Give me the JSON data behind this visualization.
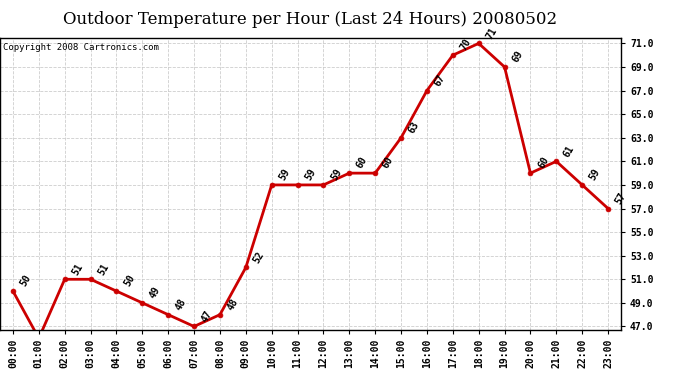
{
  "title": "Outdoor Temperature per Hour (Last 24 Hours) 20080502",
  "copyright": "Copyright 2008 Cartronics.com",
  "hours": [
    "00:00",
    "01:00",
    "02:00",
    "03:00",
    "04:00",
    "05:00",
    "06:00",
    "07:00",
    "08:00",
    "09:00",
    "10:00",
    "11:00",
    "12:00",
    "13:00",
    "14:00",
    "15:00",
    "16:00",
    "17:00",
    "18:00",
    "19:00",
    "20:00",
    "21:00",
    "22:00",
    "23:00"
  ],
  "temps": [
    50,
    46,
    51,
    51,
    50,
    49,
    48,
    47,
    48,
    52,
    59,
    59,
    59,
    60,
    60,
    63,
    67,
    70,
    71,
    69,
    60,
    61,
    59,
    57
  ],
  "line_color": "#cc0000",
  "marker_color": "#cc0000",
  "bg_color": "#ffffff",
  "grid_color": "#c8c8c8",
  "ylim_min": 47.0,
  "ylim_max": 71.0,
  "ytick_step": 2.0,
  "title_fontsize": 12,
  "copyright_fontsize": 6.5,
  "annotation_fontsize": 7,
  "tick_fontsize": 7
}
